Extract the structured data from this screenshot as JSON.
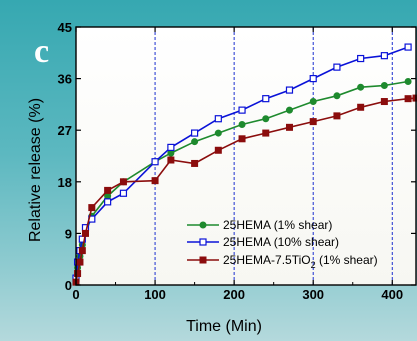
{
  "panel_label": "c",
  "chart_data": {
    "type": "line",
    "xlabel": "Time (Min)",
    "ylabel": "Relative release (%)",
    "xlim": [
      0,
      430
    ],
    "ylim": [
      0,
      45
    ],
    "xticks": [
      0,
      100,
      200,
      300,
      400
    ],
    "yticks": [
      0,
      9,
      18,
      27,
      36,
      45
    ],
    "vgrid": [
      100,
      200,
      300,
      400
    ],
    "grid": "vertical dashed lines",
    "legend_position": "bottom-right",
    "series": [
      {
        "name": "25HEMA (1% shear)",
        "color": "#1e8a2e",
        "marker": "circle-filled",
        "x": [
          0,
          2,
          5,
          8,
          12,
          20,
          40,
          60,
          100,
          120,
          150,
          180,
          210,
          240,
          270,
          300,
          330,
          360,
          390,
          420
        ],
        "y": [
          1,
          3,
          5,
          7,
          9,
          12,
          15.5,
          18,
          21.5,
          23,
          25,
          26.5,
          28,
          29,
          30.5,
          32,
          33,
          34.5,
          34.8,
          35.5
        ]
      },
      {
        "name": "25HEMA (10% shear)",
        "color": "#0a12d8",
        "marker": "square-open",
        "x": [
          0,
          2,
          5,
          8,
          12,
          20,
          40,
          60,
          100,
          120,
          150,
          180,
          210,
          240,
          270,
          300,
          330,
          360,
          390,
          420
        ],
        "y": [
          1.2,
          4,
          6,
          8,
          10,
          11.5,
          14.5,
          16,
          21.5,
          24,
          26.5,
          29,
          30.5,
          32.5,
          34,
          36,
          38,
          39.5,
          40,
          41.5
        ]
      },
      {
        "name": "25HEMA-7.5TiO",
        "name_subscript": "2",
        "name_suffix": " (1% shear)",
        "color": "#8b0d0d",
        "marker": "square-filled",
        "x": [
          0,
          2,
          5,
          8,
          12,
          20,
          40,
          60,
          100,
          120,
          150,
          180,
          210,
          240,
          270,
          300,
          330,
          360,
          390,
          420,
          430
        ],
        "y": [
          0.5,
          2,
          4,
          6,
          9,
          13.5,
          16.5,
          18,
          18.2,
          21.8,
          21.2,
          23.5,
          25.5,
          26.5,
          27.5,
          28.5,
          29.5,
          31,
          32,
          32.5,
          32.6
        ]
      }
    ]
  }
}
